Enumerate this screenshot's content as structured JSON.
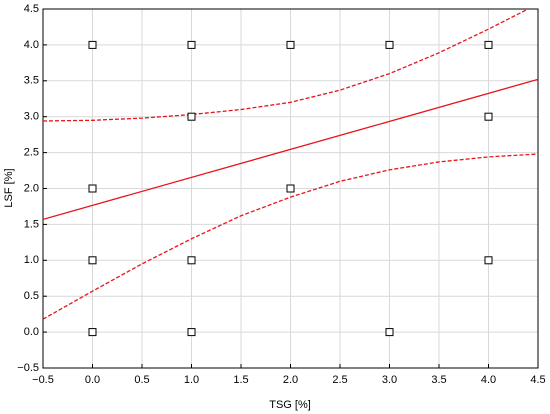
{
  "chart_data": {
    "type": "scatter",
    "x_label": "TSG [%]",
    "y_label": "LSF [%]",
    "xlim": [
      -0.5,
      4.5
    ],
    "ylim": [
      -0.5,
      4.5
    ],
    "xticks": [
      {
        "value": -0.5,
        "label": "−0.5"
      },
      {
        "value": 0,
        "label": "0.0"
      },
      {
        "value": 0.5,
        "label": "0.5"
      },
      {
        "value": 1,
        "label": "1.0"
      },
      {
        "value": 1.5,
        "label": "1.5"
      },
      {
        "value": 2,
        "label": "2.0"
      },
      {
        "value": 2.5,
        "label": "2.5"
      },
      {
        "value": 3,
        "label": "3.0"
      },
      {
        "value": 3.5,
        "label": "3.5"
      },
      {
        "value": 4,
        "label": "4.0"
      },
      {
        "value": 4.5,
        "label": "4.5"
      }
    ],
    "yticks": [
      {
        "value": -0.5,
        "label": "−0.5"
      },
      {
        "value": 0,
        "label": "0.0"
      },
      {
        "value": 0.5,
        "label": "0.5"
      },
      {
        "value": 1,
        "label": "1.0"
      },
      {
        "value": 1.5,
        "label": "1.5"
      },
      {
        "value": 2,
        "label": "2.0"
      },
      {
        "value": 2.5,
        "label": "2.5"
      },
      {
        "value": 3,
        "label": "3.0"
      },
      {
        "value": 3.5,
        "label": "3.5"
      },
      {
        "value": 4,
        "label": "4.0"
      },
      {
        "value": 4.5,
        "label": "4.5"
      }
    ],
    "grid": true,
    "marker_color": "#000000",
    "x": [
      0,
      1,
      2,
      3,
      4,
      1,
      4,
      0,
      2,
      0,
      1,
      4,
      0,
      1,
      3
    ],
    "values": [
      4,
      4,
      4,
      4,
      4,
      3,
      3,
      2,
      2,
      1,
      1,
      1,
      0,
      0,
      0
    ],
    "lines": [
      {
        "color": "#e8141b",
        "style": "solid",
        "x": [
          -0.5,
          4.5
        ],
        "values": [
          1.57,
          3.52
        ]
      },
      {
        "color": "#e8141b",
        "style": "dashed",
        "x": [
          -0.5,
          0,
          0.5,
          1,
          1.5,
          2,
          2.5,
          3,
          3.5,
          4,
          4.4
        ],
        "values": [
          2.94,
          2.95,
          2.98,
          3.03,
          3.1,
          3.2,
          3.37,
          3.6,
          3.89,
          4.22,
          4.5
        ]
      },
      {
        "color": "#e8141b",
        "style": "dashed",
        "x": [
          -0.5,
          0,
          0.5,
          1,
          1.5,
          2,
          2.5,
          3,
          3.5,
          4,
          4.5
        ],
        "values": [
          0.18,
          0.57,
          0.95,
          1.3,
          1.62,
          1.88,
          2.1,
          2.26,
          2.37,
          2.44,
          2.48
        ]
      }
    ]
  }
}
